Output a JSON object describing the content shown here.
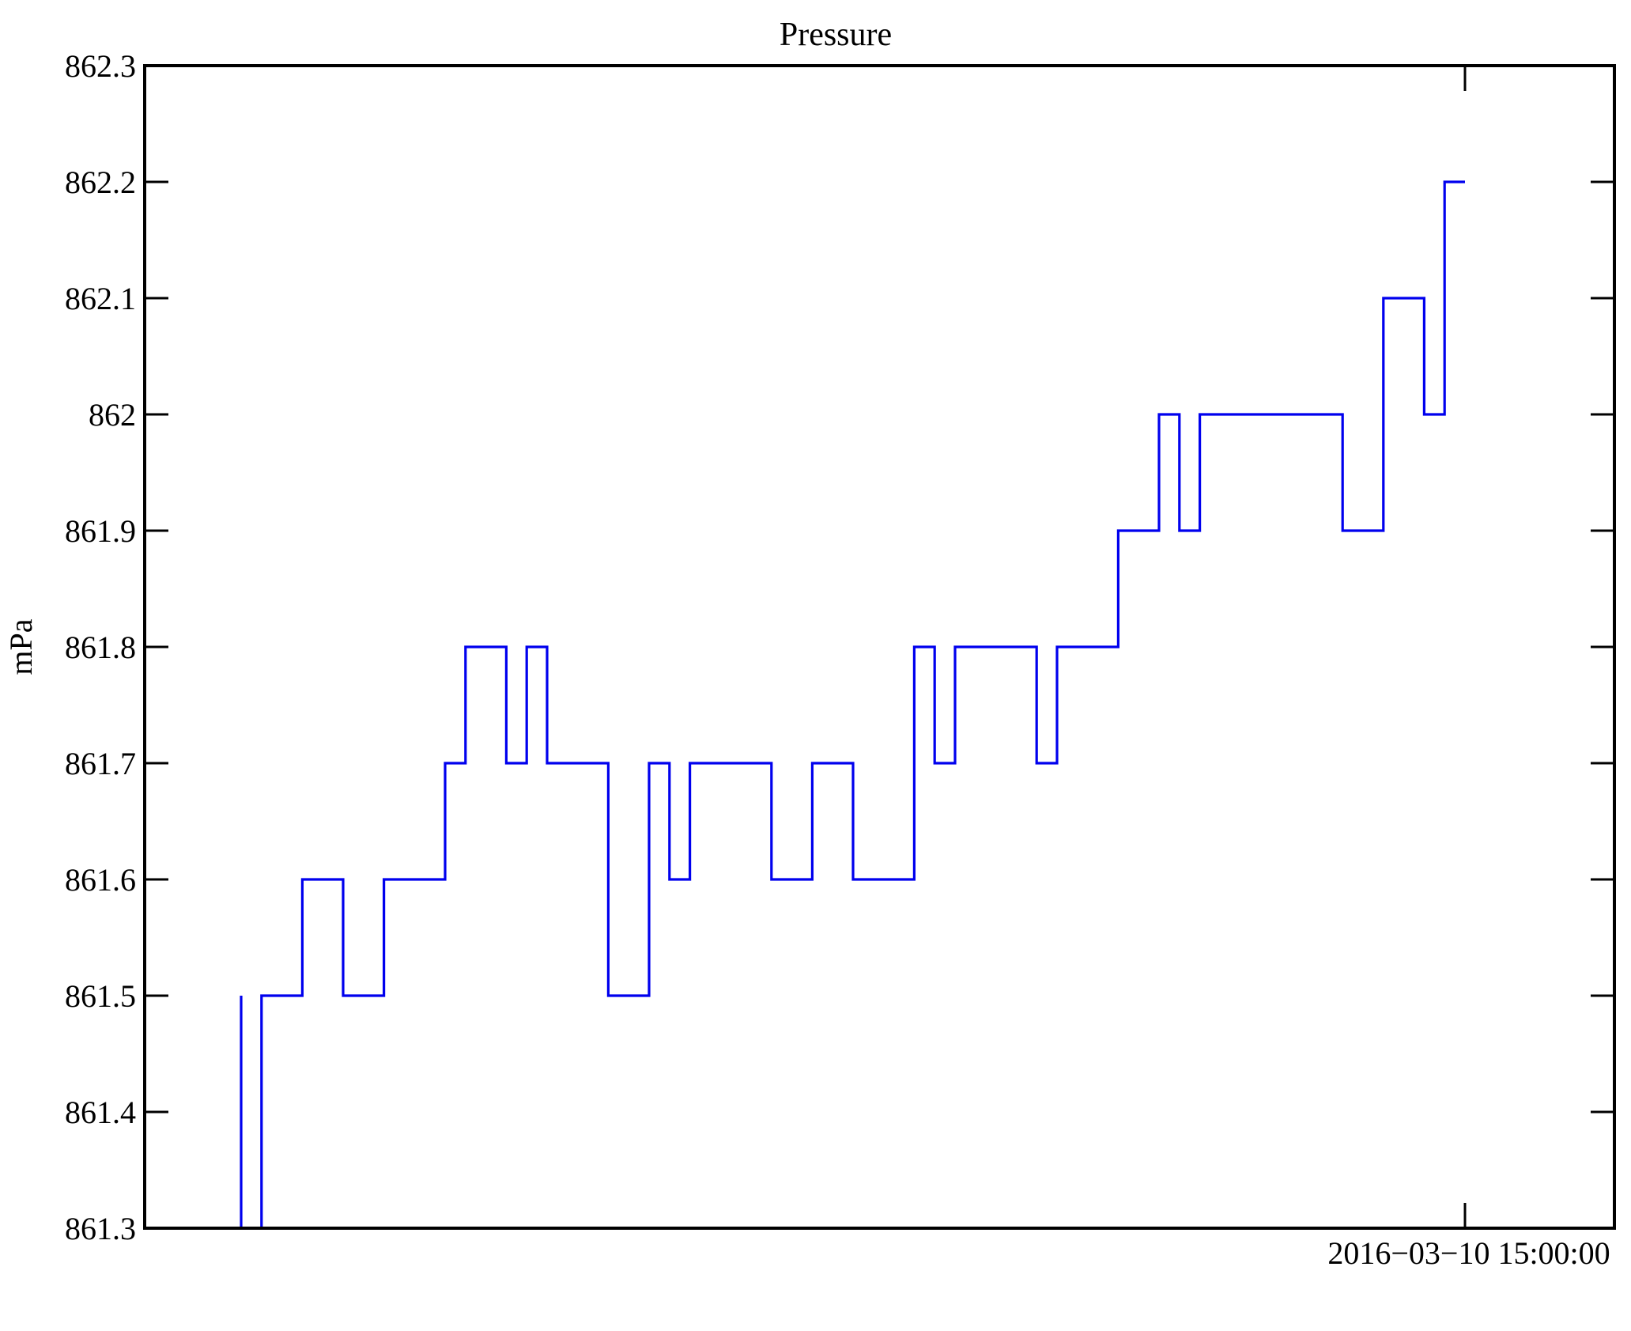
{
  "chart_data": {
    "type": "line",
    "step_mode": "pre",
    "title": "Pressure",
    "ylabel": "mPa",
    "xlabel": "",
    "ylim": [
      861.3,
      862.3
    ],
    "ytick_step": 0.1,
    "ytick_labels": [
      "861.3",
      "861.4",
      "861.5",
      "861.6",
      "861.7",
      "861.8",
      "861.9",
      "862",
      "862.1",
      "862.2",
      "862.3"
    ],
    "x_tick_label": "2016−03−10 15:00:00",
    "x_tick_at_index": 60,
    "x_index_range": [
      -4.73,
      67.33
    ],
    "grid": "off",
    "legend": "none",
    "line_color": "#0000ee",
    "frame_color": "#000000",
    "values": [
      861.5,
      861.3,
      861.5,
      861.5,
      861.6,
      861.6,
      861.5,
      861.5,
      861.6,
      861.6,
      861.6,
      861.7,
      861.8,
      861.8,
      861.7,
      861.8,
      861.7,
      861.7,
      861.7,
      861.5,
      861.5,
      861.7,
      861.6,
      861.7,
      861.7,
      861.7,
      861.7,
      861.6,
      861.6,
      861.7,
      861.7,
      861.6,
      861.6,
      861.6,
      861.8,
      861.7,
      861.8,
      861.8,
      861.8,
      861.8,
      861.7,
      861.8,
      861.8,
      861.8,
      861.9,
      861.9,
      862.0,
      861.9,
      862.0,
      862.0,
      862.0,
      862.0,
      862.0,
      862.0,
      862.0,
      861.9,
      861.9,
      862.1,
      862.1,
      862.0,
      862.2
    ]
  }
}
